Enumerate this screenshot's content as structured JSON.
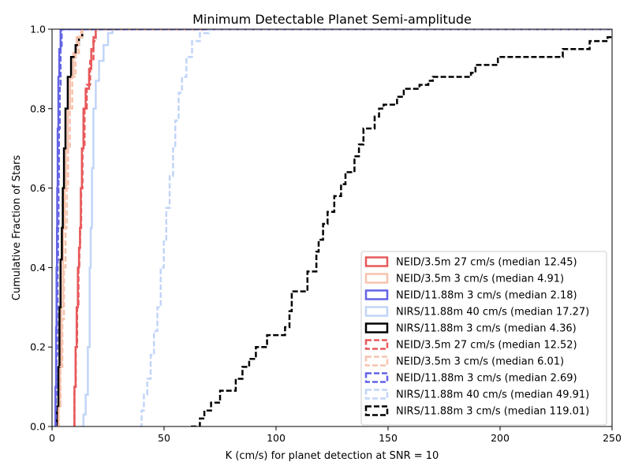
{
  "chart_data": {
    "type": "line",
    "title": "Minimum Detectable Planet Semi-amplitude",
    "xlabel": "K (cm/s) for planet detection at SNR = 10",
    "ylabel": "Cumulative Fraction of Stars",
    "xlim": [
      0,
      250
    ],
    "ylim": [
      0,
      1.0
    ],
    "xticks": [
      0,
      50,
      100,
      150,
      200,
      250
    ],
    "yticks": [
      0.0,
      0.2,
      0.4,
      0.6,
      0.8,
      1.0
    ],
    "xtick_labels": [
      "0",
      "50",
      "100",
      "150",
      "200",
      "250"
    ],
    "ytick_labels": [
      "0.0",
      "0.2",
      "0.4",
      "0.6",
      "0.8",
      "1.0"
    ],
    "grid": false,
    "legend_position": "lower-right",
    "series": [
      {
        "name": "NEID/3.5m 27 cm/s (median 12.45)",
        "color": "#e8585a",
        "dash": "solid",
        "x": [
          9.5,
          10.0,
          10.5,
          11.0,
          11.5,
          12.0,
          12.45,
          12.8,
          13.3,
          14.0,
          15.0,
          16.5,
          17.5,
          18.5,
          19.5
        ],
        "y": [
          0.0,
          0.1,
          0.2,
          0.3,
          0.4,
          0.45,
          0.5,
          0.6,
          0.7,
          0.8,
          0.85,
          0.9,
          0.95,
          0.98,
          1.0
        ]
      },
      {
        "name": "NEID/3.5m 3 cm/s (median 4.91)",
        "color": "#f7c3ad",
        "dash": "solid",
        "x": [
          2.0,
          2.8,
          3.5,
          4.2,
          4.91,
          5.6,
          6.2,
          7.0,
          8.0,
          9.5,
          11.0,
          13.0
        ],
        "y": [
          0.0,
          0.05,
          0.15,
          0.3,
          0.5,
          0.6,
          0.7,
          0.8,
          0.88,
          0.94,
          0.98,
          1.0
        ]
      },
      {
        "name": "NEID/11.88m 3 cm/s (median 2.18)",
        "color": "#6464e6",
        "dash": "solid",
        "x": [
          1.2,
          1.5,
          1.8,
          2.0,
          2.18,
          2.3,
          2.5,
          2.8,
          3.2,
          3.8
        ],
        "y": [
          0.0,
          0.1,
          0.25,
          0.4,
          0.5,
          0.6,
          0.75,
          0.88,
          0.95,
          1.0
        ]
      },
      {
        "name": "NIRS/11.88m 40 cm/s (median 17.27)",
        "color": "#c1d5f8",
        "dash": "solid",
        "x": [
          13.0,
          14.0,
          15.0,
          16.0,
          16.8,
          17.27,
          17.8,
          18.5,
          19.5,
          21.0,
          23.0,
          25.0,
          27.0
        ],
        "y": [
          0.0,
          0.03,
          0.08,
          0.2,
          0.4,
          0.5,
          0.65,
          0.8,
          0.87,
          0.92,
          0.96,
          0.99,
          1.0
        ]
      },
      {
        "name": "NIRS/11.88m 3 cm/s (median 4.36)",
        "color": "#000000",
        "dash": "solid",
        "x": [
          1.5,
          2.2,
          2.8,
          3.3,
          3.8,
          4.36,
          4.8,
          5.3,
          6.0,
          7.0,
          8.5,
          10.5,
          12.0,
          13.5
        ],
        "y": [
          0.0,
          0.05,
          0.15,
          0.3,
          0.42,
          0.5,
          0.6,
          0.7,
          0.8,
          0.88,
          0.93,
          0.96,
          0.98,
          1.0
        ]
      },
      {
        "name": "NEID/3.5m 27 cm/s (median 12.52)",
        "color": "#e8585a",
        "dash": "dashed",
        "x": [
          9.5,
          10.0,
          10.6,
          11.2,
          11.8,
          12.2,
          12.52,
          13.0,
          13.6,
          14.5,
          15.5,
          17.0,
          18.5,
          19.5
        ],
        "y": [
          0.0,
          0.1,
          0.2,
          0.3,
          0.4,
          0.45,
          0.5,
          0.6,
          0.7,
          0.8,
          0.86,
          0.92,
          0.97,
          1.0
        ]
      },
      {
        "name": "NEID/3.5m 3 cm/s (median 6.01)",
        "color": "#f7c3ad",
        "dash": "dashed",
        "x": [
          2.2,
          3.0,
          3.8,
          4.6,
          5.3,
          6.01,
          6.6,
          7.2,
          8.0,
          9.0,
          10.5,
          12.0,
          13.5
        ],
        "y": [
          0.0,
          0.05,
          0.15,
          0.27,
          0.4,
          0.5,
          0.6,
          0.7,
          0.8,
          0.88,
          0.94,
          0.98,
          1.0
        ]
      },
      {
        "name": "NEID/11.88m 3 cm/s (median 2.69)",
        "color": "#6464e6",
        "dash": "dashed",
        "x": [
          1.3,
          1.7,
          2.0,
          2.3,
          2.5,
          2.69,
          2.9,
          3.1,
          3.4,
          3.8,
          4.3
        ],
        "y": [
          0.0,
          0.08,
          0.18,
          0.3,
          0.42,
          0.5,
          0.62,
          0.75,
          0.86,
          0.95,
          1.0
        ]
      },
      {
        "name": "NIRS/11.88m 40 cm/s (median 49.91)",
        "color": "#c1d5f8",
        "dash": "dashed",
        "x": [
          39.0,
          40.0,
          41.0,
          42.5,
          44.0,
          45.5,
          47.0,
          48.5,
          49.91,
          51.0,
          52.5,
          54.0,
          55.0,
          56.5,
          58.0,
          60.0,
          62.5,
          66.0,
          70.0,
          72.0
        ],
        "y": [
          0.0,
          0.04,
          0.08,
          0.12,
          0.18,
          0.24,
          0.3,
          0.4,
          0.47,
          0.55,
          0.63,
          0.7,
          0.77,
          0.84,
          0.88,
          0.93,
          0.97,
          0.99,
          1.0,
          1.0
        ]
      },
      {
        "name": "NIRS/11.88m 3 cm/s (median 119.01)",
        "color": "#000000",
        "dash": "dashed",
        "x": [
          62.0,
          66.0,
          68.0,
          71.0,
          75.0,
          82.0,
          85.0,
          88.0,
          91.0,
          96.0,
          104.0,
          106.0,
          107.0,
          114.0,
          118.0,
          119.01,
          121.0,
          123.0,
          126.0,
          129.0,
          131.0,
          135.0,
          137.0,
          139.0,
          144.0,
          146.0,
          148.0,
          154.0,
          157.0,
          164.0,
          168.0,
          170.0,
          187.0,
          189.0,
          199.0,
          228.0,
          240.0,
          248.0
        ],
        "y": [
          0.0,
          0.02,
          0.04,
          0.06,
          0.09,
          0.12,
          0.15,
          0.17,
          0.2,
          0.23,
          0.25,
          0.29,
          0.34,
          0.39,
          0.44,
          0.47,
          0.51,
          0.54,
          0.58,
          0.61,
          0.64,
          0.68,
          0.71,
          0.75,
          0.78,
          0.8,
          0.81,
          0.83,
          0.85,
          0.86,
          0.87,
          0.88,
          0.89,
          0.91,
          0.93,
          0.95,
          0.97,
          0.98
        ]
      }
    ]
  }
}
